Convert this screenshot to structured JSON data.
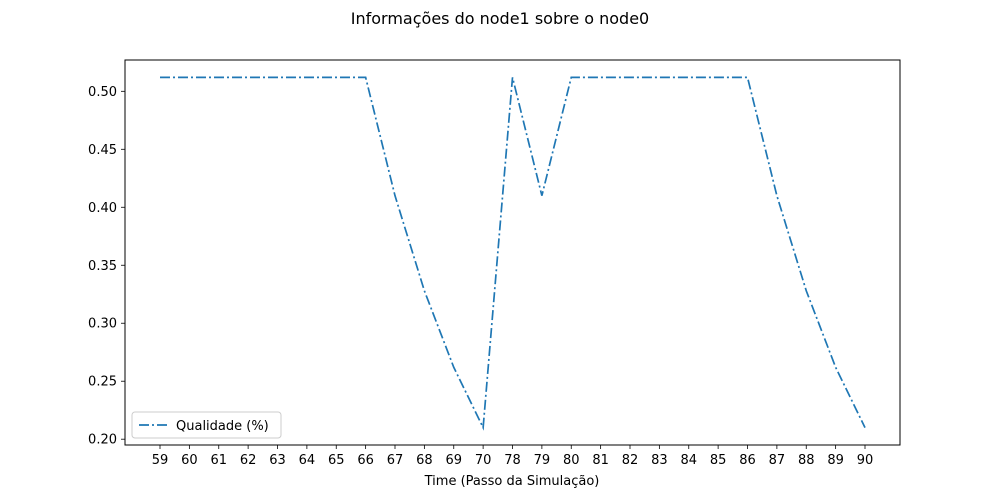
{
  "chart_data": {
    "type": "line",
    "title": "Informações do node1 sobre o node0",
    "xlabel": "Time (Passo da Simulação)",
    "ylabel": "",
    "categories": [
      "59",
      "60",
      "61",
      "62",
      "63",
      "64",
      "65",
      "66",
      "67",
      "68",
      "69",
      "70",
      "78",
      "79",
      "80",
      "81",
      "82",
      "83",
      "84",
      "85",
      "86",
      "87",
      "88",
      "89",
      "90"
    ],
    "series": [
      {
        "name": "Qualidade (%)",
        "values": [
          0.512,
          0.512,
          0.512,
          0.512,
          0.512,
          0.512,
          0.512,
          0.512,
          0.41,
          0.328,
          0.262,
          0.21,
          0.512,
          0.41,
          0.512,
          0.512,
          0.512,
          0.512,
          0.512,
          0.512,
          0.512,
          0.41,
          0.328,
          0.262,
          0.21
        ],
        "color": "#1f77b4",
        "line_style": "dash-dot"
      }
    ],
    "yticks": [
      0.2,
      0.25,
      0.3,
      0.35,
      0.4,
      0.45,
      0.5
    ],
    "ytick_labels": [
      "0.20",
      "0.25",
      "0.30",
      "0.35",
      "0.40",
      "0.45",
      "0.50"
    ],
    "ylim": [
      0.195,
      0.527
    ],
    "grid": false,
    "legend_position": "lower-left"
  }
}
